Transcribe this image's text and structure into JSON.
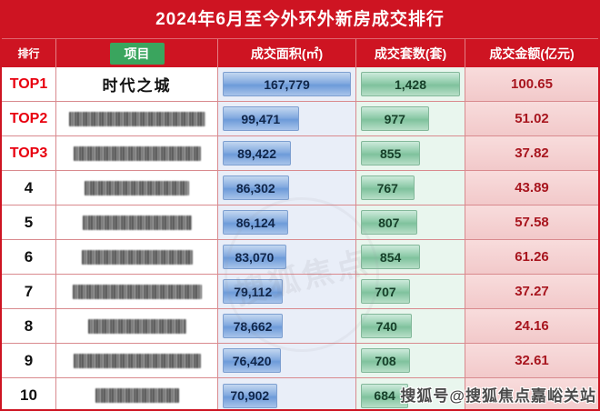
{
  "title": "2024年6月至今外环外新房成交排行",
  "columns": {
    "rank": "排行",
    "project": "项目",
    "area": "成交面积(㎡)",
    "count": "成交套数(套)",
    "amount": "成交金额(亿元)"
  },
  "watermark": "搜狐号@搜狐焦点嘉峪关站",
  "stamp_text": "搜狐焦点",
  "colors": {
    "header_red": "#ce1422",
    "rank_top_red": "#e8000f",
    "project_badge_green": "#3aa55e",
    "area_bar_blue": "#6d9bd9",
    "count_bar_green": "#7fc29d",
    "amount_bg_pink": "#f2c9ca",
    "amount_text_red": "#a8161f"
  },
  "chart_data": {
    "type": "table",
    "title": "2024年6月至今外环外新房成交排行",
    "columns": [
      "排行",
      "项目",
      "成交面积(㎡)",
      "成交套数(套)",
      "成交金额(亿元)"
    ],
    "notes": "第2-10名项目名称被马赛克遮挡；第10名成交金额被水印遮挡",
    "rows": [
      {
        "rank": "TOP1",
        "top": true,
        "project": "时代之城",
        "redacted": false,
        "redact_w": 0,
        "area": "167,779",
        "area_value": 167779,
        "count": "1,428",
        "count_value": 1428,
        "amount": "100.65"
      },
      {
        "rank": "TOP2",
        "top": true,
        "project": "",
        "redacted": true,
        "redact_w": 150,
        "area": "99,471",
        "area_value": 99471,
        "count": "977",
        "count_value": 977,
        "amount": "51.02"
      },
      {
        "rank": "TOP3",
        "top": true,
        "project": "",
        "redacted": true,
        "redact_w": 140,
        "area": "89,422",
        "area_value": 89422,
        "count": "855",
        "count_value": 855,
        "amount": "37.82"
      },
      {
        "rank": "4",
        "top": false,
        "project": "",
        "redacted": true,
        "redact_w": 115,
        "area": "86,302",
        "area_value": 86302,
        "count": "767",
        "count_value": 767,
        "amount": "43.89"
      },
      {
        "rank": "5",
        "top": false,
        "project": "",
        "redacted": true,
        "redact_w": 120,
        "area": "86,124",
        "area_value": 86124,
        "count": "807",
        "count_value": 807,
        "amount": "57.58"
      },
      {
        "rank": "6",
        "top": false,
        "project": "",
        "redacted": true,
        "redact_w": 122,
        "area": "83,070",
        "area_value": 83070,
        "count": "854",
        "count_value": 854,
        "amount": "61.26"
      },
      {
        "rank": "7",
        "top": false,
        "project": "",
        "redacted": true,
        "redact_w": 142,
        "area": "79,112",
        "area_value": 79112,
        "count": "707",
        "count_value": 707,
        "amount": "37.27"
      },
      {
        "rank": "8",
        "top": false,
        "project": "",
        "redacted": true,
        "redact_w": 108,
        "area": "78,662",
        "area_value": 78662,
        "count": "740",
        "count_value": 740,
        "amount": "24.16"
      },
      {
        "rank": "9",
        "top": false,
        "project": "",
        "redacted": true,
        "redact_w": 140,
        "area": "76,420",
        "area_value": 76420,
        "count": "708",
        "count_value": 708,
        "amount": "32.61"
      },
      {
        "rank": "10",
        "top": false,
        "project": "",
        "redacted": true,
        "redact_w": 92,
        "area": "70,902",
        "area_value": 70902,
        "count": "684",
        "count_value": 684,
        "amount": ""
      }
    ]
  }
}
